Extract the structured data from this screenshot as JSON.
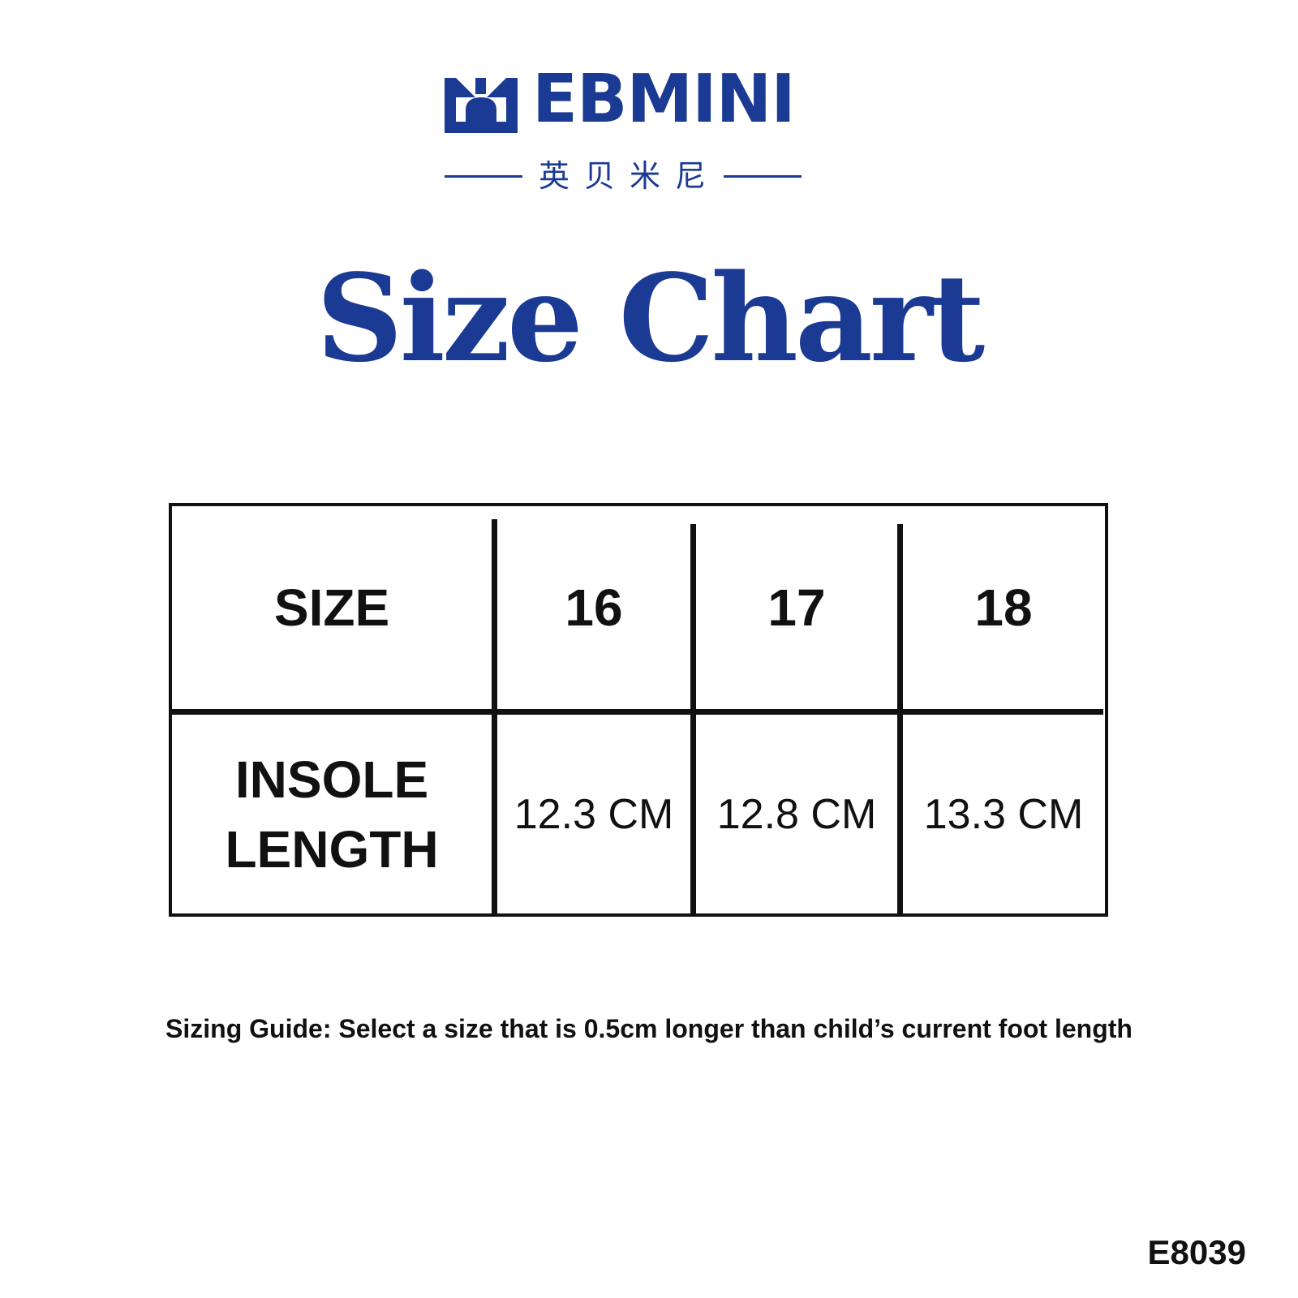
{
  "brand": {
    "name": "EBMINI",
    "chinese_name": "英贝米尼",
    "color": "#1b3a93"
  },
  "title": "Size Chart",
  "table": {
    "header_label": "SIZE",
    "sizes": [
      "16",
      "17",
      "18"
    ],
    "row_label_line1": "INSOLE",
    "row_label_line2": "LENGTH",
    "insole_lengths": [
      "12.3 CM",
      "12.8 CM",
      "13.3 CM"
    ]
  },
  "sizing_guide": "Sizing Guide:  Select a size that is 0.5cm longer than child’s current foot length",
  "product_code": "E8039"
}
